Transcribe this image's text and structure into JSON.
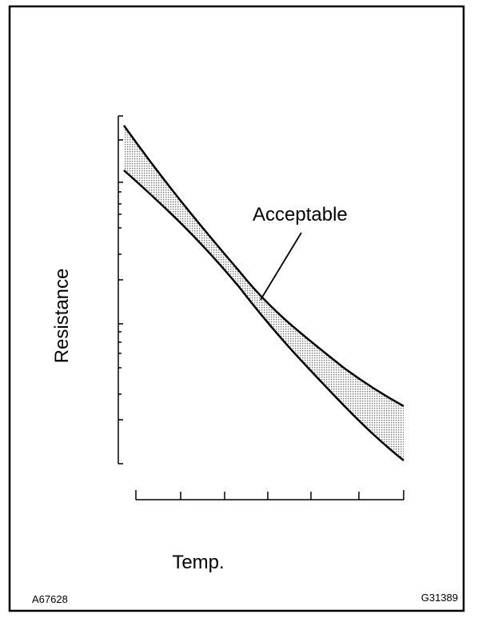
{
  "labels": {
    "acceptable": "Acceptable",
    "y_axis": "Resistance",
    "x_axis": "Temp."
  },
  "figure_ids": {
    "left": "A67628",
    "right": "G31389"
  }
}
